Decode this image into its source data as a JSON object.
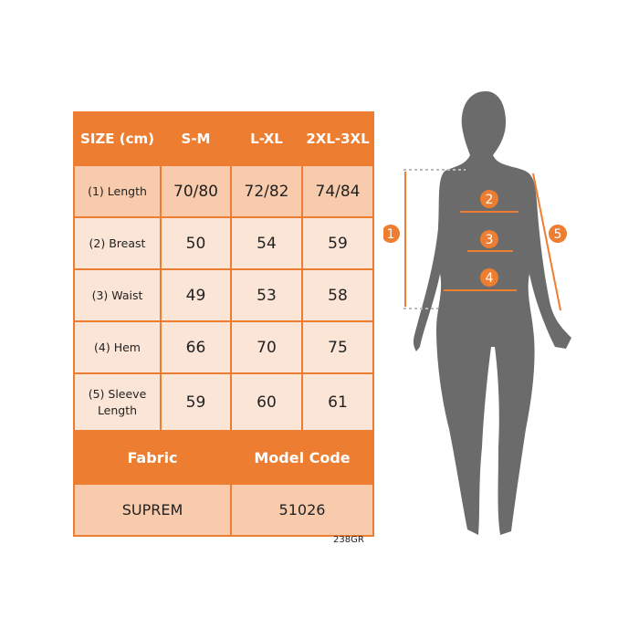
{
  "header": {
    "size": "SIZE (cm)",
    "cols": [
      "S-M",
      "L-XL",
      "2XL-3XL"
    ]
  },
  "rows": [
    {
      "label": "(1) Length",
      "values": [
        "70/80",
        "72/82",
        "74/84"
      ]
    },
    {
      "label": "(2) Breast",
      "values": [
        "50",
        "54",
        "59"
      ]
    },
    {
      "label": "(3) Waist",
      "values": [
        "49",
        "53",
        "58"
      ]
    },
    {
      "label": "(4) Hem",
      "values": [
        "66",
        "70",
        "75"
      ]
    },
    {
      "label": "(5) Sleeve Length",
      "values": [
        "59",
        "60",
        "61"
      ]
    }
  ],
  "footer": {
    "fabric_label": "Fabric",
    "model_label": "Model Code",
    "fabric": "SUPREM",
    "model": "51026"
  },
  "product_code": "238GR",
  "figure": {
    "markers": [
      "1",
      "2",
      "3",
      "4",
      "5"
    ]
  },
  "colors": {
    "accent": "#ed7d31",
    "cell": "#fbe5d6",
    "cell_alt": "#f8cbad",
    "silhouette": "#6b6b6b"
  }
}
